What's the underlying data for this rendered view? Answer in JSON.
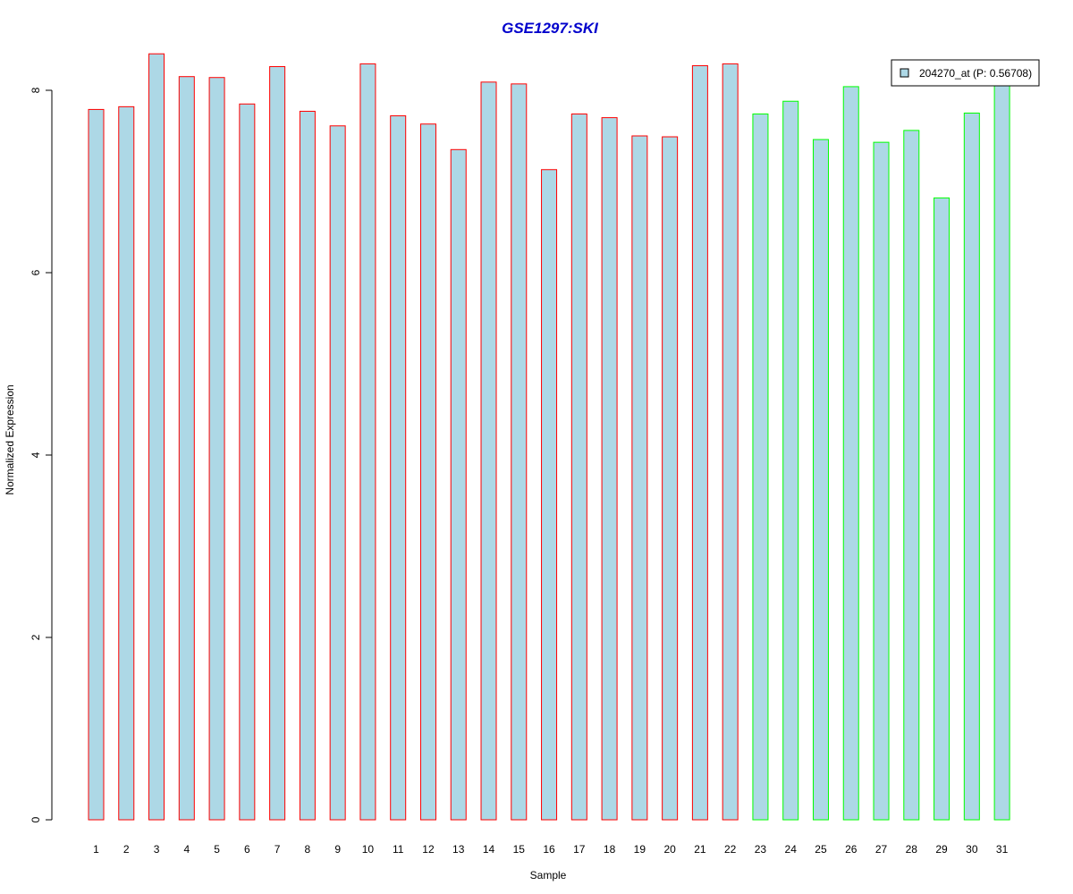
{
  "chart_data": {
    "type": "bar",
    "title": "GSE1297:SKI",
    "xlabel": "Sample",
    "ylabel": "Normalized Expression",
    "ylim": [
      0,
      8.3
    ],
    "y_ticks": [
      "0",
      "2",
      "4",
      "6",
      "8"
    ],
    "categories": [
      "1",
      "2",
      "3",
      "4",
      "5",
      "6",
      "7",
      "8",
      "9",
      "10",
      "11",
      "12",
      "13",
      "14",
      "15",
      "16",
      "17",
      "18",
      "19",
      "20",
      "21",
      "22",
      "23",
      "24",
      "25",
      "26",
      "27",
      "28",
      "29",
      "30",
      "31"
    ],
    "series": [
      {
        "name": "204270_at (P: 0.56708)",
        "values": [
          7.79,
          7.82,
          8.4,
          8.15,
          8.14,
          7.85,
          8.26,
          7.77,
          7.61,
          8.29,
          7.72,
          7.63,
          7.35,
          8.09,
          8.07,
          7.13,
          7.74,
          7.7,
          7.5,
          7.49,
          8.27,
          8.29,
          7.74,
          7.88,
          7.46,
          8.04,
          7.43,
          7.56,
          6.82,
          7.75,
          8.1
        ]
      }
    ],
    "groups": [
      1,
      1,
      1,
      1,
      1,
      1,
      1,
      1,
      1,
      1,
      1,
      1,
      1,
      1,
      1,
      1,
      1,
      1,
      1,
      1,
      1,
      1,
      2,
      2,
      2,
      2,
      2,
      2,
      2,
      2,
      2
    ],
    "colors": {
      "fill": "#add8e6",
      "group1_border": "#ff0000",
      "group2_border": "#00ff00",
      "title": "#0000cc"
    },
    "legend": {
      "position": "top-right",
      "label": "204270_at (P: 0.56708)"
    }
  }
}
